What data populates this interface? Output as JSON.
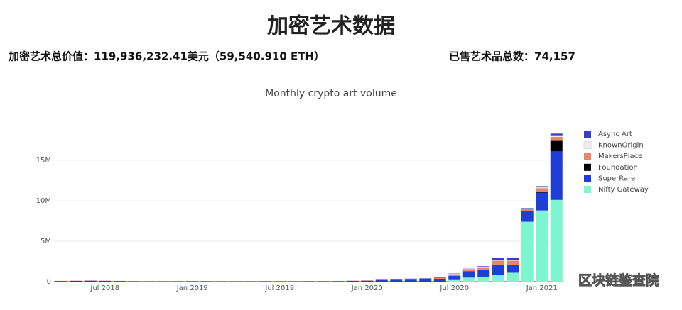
{
  "header": {
    "title": "加密艺术数据",
    "total_value": "加密艺术总价值：119,936,232.41美元（59,540.910 ETH）",
    "total_sold": "已售艺术品总数：74,157"
  },
  "watermark": "区块链鉴查院",
  "chart_data": {
    "type": "bar",
    "stacked": true,
    "title": "Monthly crypto art volume",
    "categories": [
      null,
      null,
      null,
      "Jul 2018",
      null,
      null,
      null,
      null,
      null,
      "Jan 2019",
      null,
      null,
      null,
      null,
      null,
      "Jul 2019",
      null,
      null,
      null,
      null,
      null,
      "Jan 2020",
      null,
      null,
      null,
      null,
      null,
      "Jul 2020",
      null,
      null,
      null,
      null,
      null,
      "Jan 2021",
      null
    ],
    "series": [
      {
        "name": "Nifty Gateway",
        "color": "#7df5cf",
        "values": [
          0,
          0,
          0,
          0,
          0,
          0,
          0,
          0,
          0,
          0,
          0,
          0,
          0,
          0,
          0,
          0,
          0,
          0,
          0,
          0,
          0,
          0,
          0,
          0,
          0,
          0,
          0,
          200000,
          500000,
          600000,
          800000,
          1100000,
          7400000,
          8800000,
          10100000
        ]
      },
      {
        "name": "SuperRare",
        "color": "#1f3ed6",
        "values": [
          80000,
          100000,
          120000,
          100000,
          80000,
          60000,
          50000,
          50000,
          50000,
          60000,
          60000,
          50000,
          50000,
          50000,
          60000,
          50000,
          50000,
          60000,
          60000,
          70000,
          100000,
          120000,
          200000,
          220000,
          250000,
          280000,
          350000,
          500000,
          800000,
          900000,
          1300000,
          1000000,
          1300000,
          2200000,
          6000000
        ]
      },
      {
        "name": "Foundation",
        "color": "#000000",
        "values": [
          0,
          0,
          0,
          0,
          0,
          0,
          0,
          0,
          0,
          0,
          0,
          0,
          0,
          0,
          0,
          0,
          0,
          0,
          0,
          0,
          0,
          0,
          0,
          0,
          0,
          0,
          0,
          0,
          0,
          0,
          0,
          0,
          0,
          50000,
          1300000
        ]
      },
      {
        "name": "MakersPlace",
        "color": "#e8866a",
        "values": [
          20000,
          20000,
          20000,
          20000,
          20000,
          20000,
          20000,
          20000,
          20000,
          20000,
          20000,
          20000,
          20000,
          20000,
          20000,
          20000,
          20000,
          20000,
          20000,
          20000,
          20000,
          30000,
          50000,
          60000,
          70000,
          80000,
          100000,
          200000,
          200000,
          200000,
          500000,
          500000,
          300000,
          500000,
          500000
        ]
      },
      {
        "name": "KnownOrigin",
        "color": "#eeeeee",
        "values": [
          0,
          0,
          0,
          0,
          0,
          0,
          0,
          0,
          0,
          0,
          0,
          0,
          0,
          0,
          0,
          0,
          0,
          0,
          0,
          0,
          0,
          0,
          0,
          0,
          0,
          0,
          0,
          50000,
          50000,
          50000,
          100000,
          100000,
          50000,
          100000,
          100000
        ]
      },
      {
        "name": "Async Art",
        "color": "#3a3fc9",
        "values": [
          0,
          0,
          0,
          0,
          0,
          0,
          0,
          0,
          0,
          0,
          0,
          0,
          0,
          0,
          0,
          0,
          0,
          0,
          0,
          0,
          0,
          0,
          30000,
          40000,
          50000,
          50000,
          60000,
          50000,
          50000,
          150000,
          200000,
          200000,
          50000,
          150000,
          300000
        ]
      }
    ],
    "ylim": [
      0,
      18500000
    ],
    "yticks": [
      0,
      {
        "value": 5000000,
        "label": "5M"
      },
      {
        "value": 10000000,
        "label": "10M"
      },
      {
        "value": 15000000,
        "label": "15M"
      }
    ],
    "grid": true,
    "legend": "right"
  }
}
